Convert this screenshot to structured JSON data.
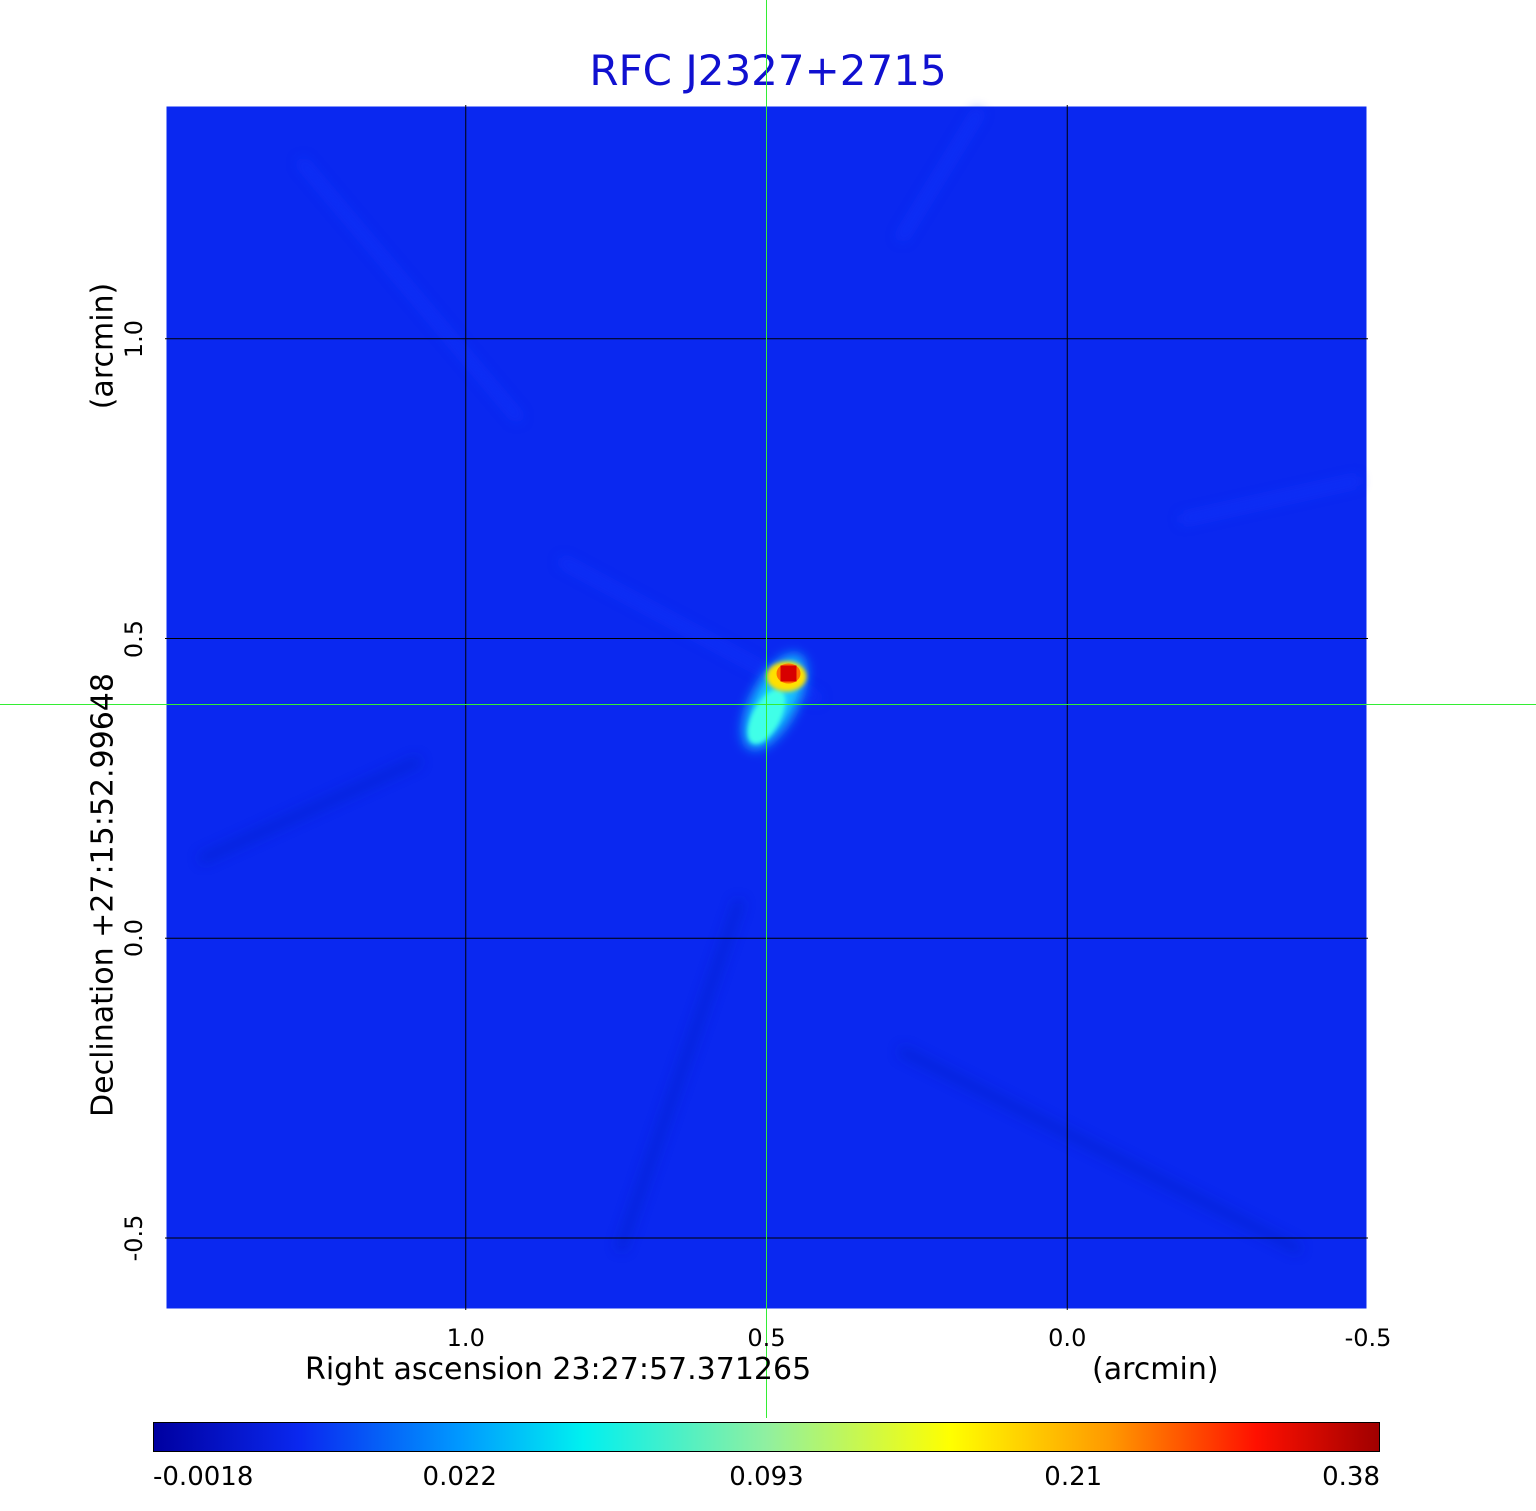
{
  "chart_data": {
    "type": "heatmap",
    "title": "RFC J2327+2715",
    "xlabel": "Right ascension  23:27:57.371265",
    "xunit": "(arcmin)",
    "ylabel": "Declination  +27:15:52.99648",
    "yunit": "(arcmin)",
    "x_ticks": [
      "1.0",
      "0.5",
      "0.0",
      "-0.5"
    ],
    "y_ticks": [
      "1.0",
      "0.5",
      "0.0",
      "-0.5"
    ],
    "xlim": [
      1.5,
      -0.5
    ],
    "ylim": [
      -0.62,
      1.39
    ],
    "grid": true,
    "crosshair": {
      "x": 0.5,
      "y": 0.39
    },
    "source": {
      "x": 0.5,
      "y": 0.39,
      "peak": 0.38
    },
    "colormap": "jet",
    "colorbar_ticks": [
      "-0.0018",
      "0.022",
      "0.093",
      "0.21",
      "0.38"
    ],
    "colorbar_range": [
      -0.0018,
      0.38
    ]
  },
  "colors": {
    "title": "#1010d0",
    "background": "#0a28f0",
    "grid": "#000000",
    "crosshair": "#33ee33"
  }
}
